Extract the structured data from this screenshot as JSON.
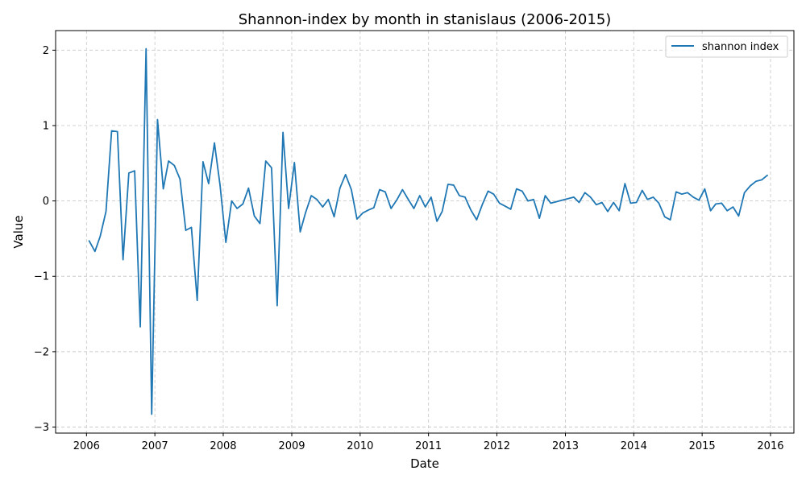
{
  "chart_data": {
    "type": "line",
    "title": "Shannon-index by month in stanislaus (2006-2015)",
    "xlabel": "Date",
    "ylabel": "Value",
    "xlim": [
      "2005-07-20",
      "2016-05-05"
    ],
    "ylim": [
      -3.08,
      2.26
    ],
    "x_ticks": [
      "2006",
      "2007",
      "2008",
      "2009",
      "2010",
      "2011",
      "2012",
      "2013",
      "2014",
      "2015",
      "2016"
    ],
    "y_ticks": [
      -3,
      -2,
      -1,
      0,
      1,
      2
    ],
    "y_tick_labels": [
      "−3",
      "−2",
      "−1",
      "0",
      "1",
      "2"
    ],
    "grid": true,
    "legend_position": "top-right",
    "colors": {
      "series": "#1f77b4"
    },
    "series": [
      {
        "name": "shannon index",
        "x": [
          "2006-01-15",
          "2006-02-15",
          "2006-03-15",
          "2006-04-15",
          "2006-05-15",
          "2006-06-15",
          "2006-07-15",
          "2006-08-15",
          "2006-09-15",
          "2006-10-15",
          "2006-11-15",
          "2006-12-15",
          "2007-01-15",
          "2007-02-15",
          "2007-03-15",
          "2007-04-15",
          "2007-05-15",
          "2007-06-15",
          "2007-07-15",
          "2007-08-15",
          "2007-09-15",
          "2007-10-15",
          "2007-11-15",
          "2007-12-15",
          "2008-01-15",
          "2008-02-15",
          "2008-03-15",
          "2008-04-15",
          "2008-05-15",
          "2008-06-15",
          "2008-07-15",
          "2008-08-15",
          "2008-09-15",
          "2008-10-15",
          "2008-11-15",
          "2008-12-15",
          "2009-01-15",
          "2009-02-15",
          "2009-03-15",
          "2009-04-15",
          "2009-05-15",
          "2009-06-15",
          "2009-07-15",
          "2009-08-15",
          "2009-09-15",
          "2009-10-15",
          "2009-11-15",
          "2009-12-15",
          "2010-01-15",
          "2010-02-15",
          "2010-03-15",
          "2010-04-15",
          "2010-05-15",
          "2010-06-15",
          "2010-07-15",
          "2010-08-15",
          "2010-09-15",
          "2010-10-15",
          "2010-11-15",
          "2010-12-15",
          "2011-01-15",
          "2011-02-15",
          "2011-03-15",
          "2011-04-15",
          "2011-05-15",
          "2011-06-15",
          "2011-07-15",
          "2011-08-15",
          "2011-09-15",
          "2011-10-15",
          "2011-11-15",
          "2011-12-15",
          "2012-01-15",
          "2012-02-15",
          "2012-03-15",
          "2012-04-15",
          "2012-05-15",
          "2012-06-15",
          "2012-07-15",
          "2012-08-15",
          "2012-09-15",
          "2012-10-15",
          "2012-11-15",
          "2012-12-15",
          "2013-01-15",
          "2013-02-15",
          "2013-03-15",
          "2013-04-15",
          "2013-05-15",
          "2013-06-15",
          "2013-07-15",
          "2013-08-15",
          "2013-09-15",
          "2013-10-15",
          "2013-11-15",
          "2013-12-15",
          "2014-01-15",
          "2014-02-15",
          "2014-03-15",
          "2014-04-15",
          "2014-05-15",
          "2014-06-15",
          "2014-07-15",
          "2014-08-15",
          "2014-09-15",
          "2014-10-15",
          "2014-11-15",
          "2014-12-15",
          "2015-01-15",
          "2015-02-15",
          "2015-03-15",
          "2015-04-15",
          "2015-05-15",
          "2015-06-15",
          "2015-07-15",
          "2015-08-15",
          "2015-09-15",
          "2015-10-15",
          "2015-11-15",
          "2015-12-15"
        ],
        "values": [
          -0.53,
          -0.67,
          -0.47,
          -0.14,
          0.93,
          0.92,
          -0.78,
          0.37,
          0.4,
          -1.67,
          2.02,
          -2.83,
          1.08,
          0.16,
          0.53,
          0.47,
          0.29,
          -0.39,
          -0.35,
          -1.32,
          0.52,
          0.23,
          0.77,
          0.21,
          -0.55,
          0.0,
          -0.1,
          -0.04,
          0.17,
          -0.2,
          -0.3,
          0.53,
          0.44,
          -1.39,
          0.91,
          -0.1,
          0.51,
          -0.41,
          -0.16,
          0.07,
          0.02,
          -0.08,
          0.02,
          -0.21,
          0.17,
          0.35,
          0.15,
          -0.24,
          -0.16,
          -0.12,
          -0.09,
          0.15,
          0.12,
          -0.1,
          0.01,
          0.15,
          0.02,
          -0.1,
          0.07,
          -0.08,
          0.05,
          -0.27,
          -0.14,
          0.22,
          0.21,
          0.07,
          0.05,
          -0.12,
          -0.25,
          -0.05,
          0.13,
          0.09,
          -0.03,
          -0.07,
          -0.11,
          0.16,
          0.13,
          0.0,
          0.02,
          -0.23,
          0.07,
          -0.03,
          -0.01,
          0.01,
          0.03,
          0.05,
          -0.02,
          0.11,
          0.05,
          -0.05,
          -0.02,
          -0.14,
          -0.02,
          -0.13,
          0.23,
          -0.03,
          -0.02,
          0.14,
          0.02,
          0.05,
          -0.03,
          -0.21,
          -0.25,
          0.12,
          0.09,
          0.11,
          0.05,
          0.01,
          0.16,
          -0.13,
          -0.04,
          -0.03,
          -0.13,
          -0.08,
          -0.2,
          0.11,
          0.2,
          0.26,
          0.28,
          0.34
        ]
      }
    ]
  }
}
